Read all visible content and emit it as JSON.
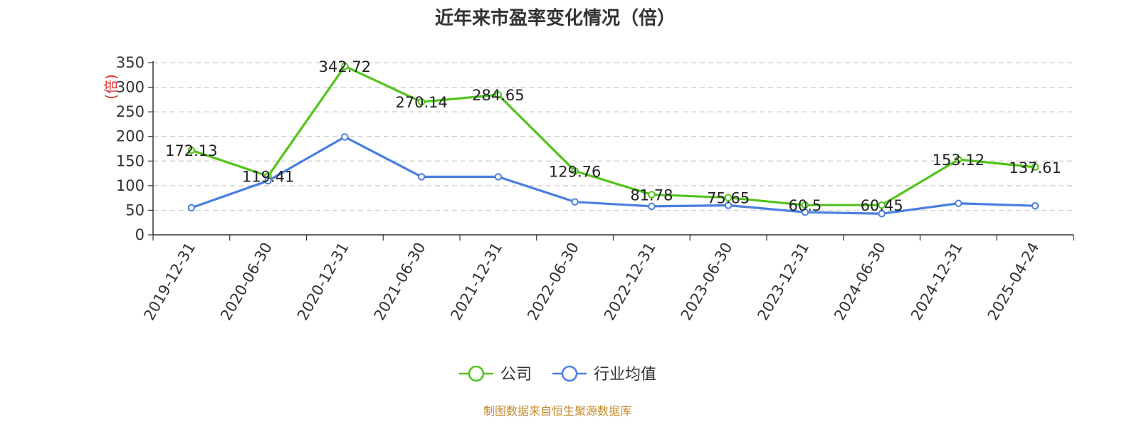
{
  "chart_data": {
    "type": "line",
    "title": "近年来市盈率变化情况（倍）",
    "ylabel": "(倍)",
    "xlabel": "",
    "categories": [
      "2019-12-31",
      "2020-06-30",
      "2020-12-31",
      "2021-06-30",
      "2021-12-31",
      "2022-06-30",
      "2022-12-31",
      "2023-06-30",
      "2023-12-31",
      "2024-06-30",
      "2024-12-31",
      "2025-04-24"
    ],
    "ylim": [
      0,
      350
    ],
    "yticks": [
      0,
      50,
      100,
      150,
      200,
      250,
      300,
      350
    ],
    "grid": true,
    "legend_position": "bottom",
    "series": [
      {
        "name": "公司",
        "color": "#52c41a",
        "show_labels": true,
        "values": [
          172.13,
          119.41,
          342.72,
          270.14,
          284.65,
          129.76,
          81.78,
          75.65,
          60.5,
          60.45,
          153.12,
          137.61
        ]
      },
      {
        "name": "行业均值",
        "color": "#4a7fe0",
        "show_labels": false,
        "values": [
          55,
          110,
          199,
          118,
          118,
          67,
          58,
          60,
          46,
          43,
          64,
          59
        ]
      }
    ]
  },
  "source_text": "制图数据来自恒生聚源数据库"
}
